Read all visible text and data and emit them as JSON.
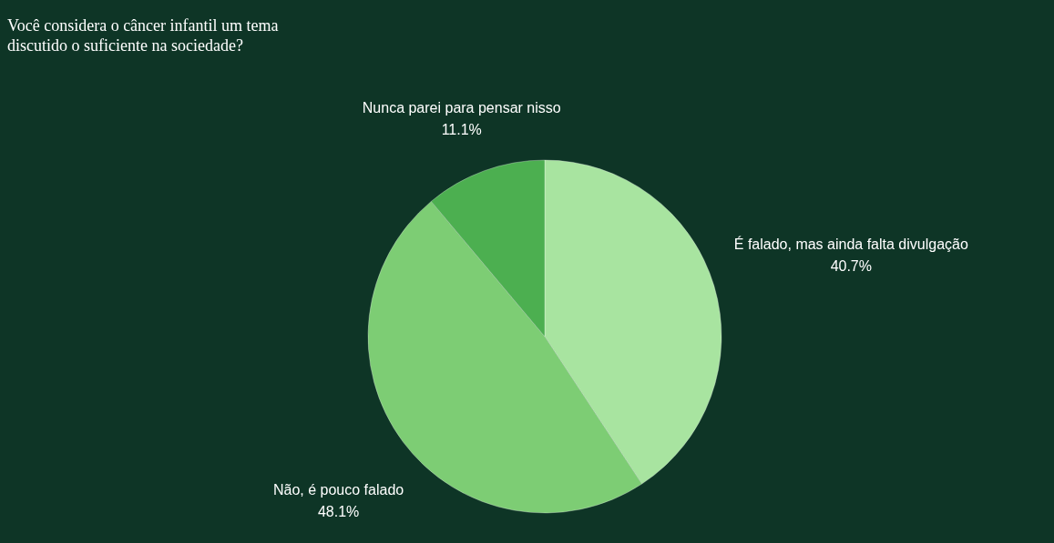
{
  "chart_data": {
    "type": "pie",
    "title": "Você considera o câncer infantil um tema discutido o suficiente na sociedade?",
    "categories": [
      "É falado, mas ainda falta divulgação",
      "Não, é pouco falado",
      "Nunca parei para pensar nisso"
    ],
    "values": [
      40.7,
      48.1,
      11.1
    ],
    "value_labels": [
      "40.7%",
      "48.1%",
      "11.1%"
    ],
    "colors": [
      "#a8e4a0",
      "#7dcd74",
      "#4caf50"
    ],
    "legend": false
  }
}
